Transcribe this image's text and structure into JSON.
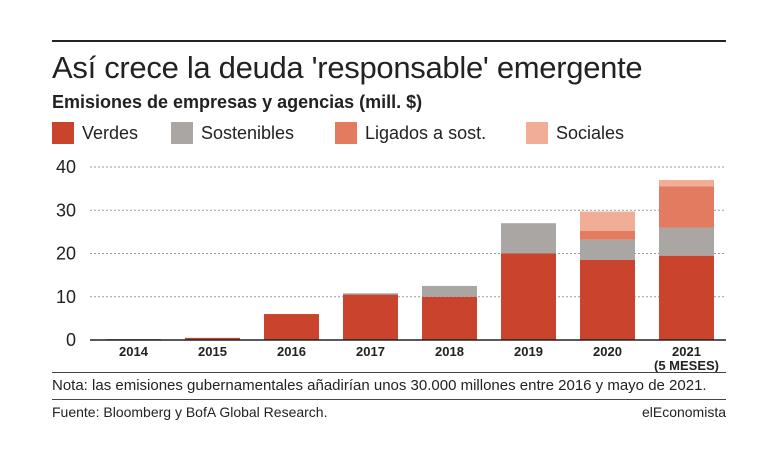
{
  "header": {
    "title": "Así crece la deuda 'responsable' emergente",
    "subtitle": "Emisiones de empresas y agencias (mill. $)"
  },
  "footer": {
    "note": "Nota: las emisiones gubernamentales añadirían unos 30.000 millones entre 2016 y mayo de 2021.",
    "source": "Fuente: Bloomberg y BofA Global Research.",
    "brand": "elEconomista"
  },
  "colors": {
    "verdes": "#c9432d",
    "sostenibles": "#a9a6a3",
    "ligados": "#e27b5f",
    "sociales": "#f2ad97"
  },
  "chart_data": {
    "type": "bar",
    "stacked": true,
    "categories": [
      "2014",
      "2015",
      "2016",
      "2017",
      "2018",
      "2019",
      "2020",
      "2021"
    ],
    "category_sublabels": [
      "",
      "",
      "",
      "",
      "",
      "",
      "",
      "(5 MESES)"
    ],
    "series": [
      {
        "name": "Verdes",
        "color": "#c9432d",
        "values": [
          0.2,
          0.5,
          6.0,
          10.5,
          10.0,
          20.0,
          18.5,
          19.5
        ]
      },
      {
        "name": "Sostenibles",
        "color": "#a9a6a3",
        "values": [
          0,
          0,
          0,
          0.3,
          2.5,
          7.0,
          4.7,
          6.5
        ]
      },
      {
        "name": "Ligados a sost.",
        "color": "#e27b5f",
        "values": [
          0,
          0,
          0,
          0,
          0,
          0,
          2.0,
          9.5
        ]
      },
      {
        "name": "Sociales",
        "color": "#f2ad97",
        "values": [
          0,
          0,
          0,
          0,
          0,
          0,
          4.5,
          1.5
        ]
      }
    ],
    "ylim": [
      0,
      40
    ],
    "yticks": [
      0,
      10,
      20,
      30,
      40
    ],
    "grid": true,
    "legend_position": "top"
  }
}
